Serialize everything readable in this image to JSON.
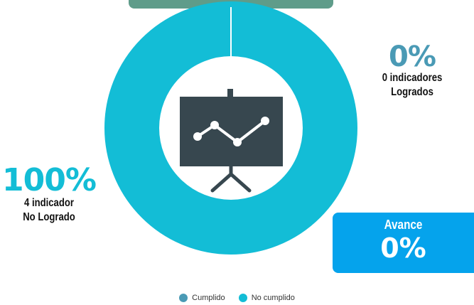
{
  "chart_data": {
    "type": "pie",
    "variant": "donut",
    "series": [
      {
        "name": "Cumplido",
        "value": 0,
        "color": "#4a9ab5"
      },
      {
        "name": "No cumplido",
        "value": 100,
        "color": "#13bdd6"
      }
    ],
    "legend_position": "bottom-center"
  },
  "stats": {
    "right": {
      "percent": "0%",
      "line1": "0 indicadores",
      "line2": "Logrados"
    },
    "left": {
      "percent": "100%",
      "line1": "4 indicador",
      "line2": "No Logrado"
    }
  },
  "avance": {
    "label": "Avance",
    "value": "0%"
  },
  "legend": {
    "items": [
      {
        "label": "Cumplido",
        "color": "#4a9ab5"
      },
      {
        "label": "No cumplido",
        "color": "#13bdd6"
      }
    ]
  },
  "center_icon": "presentation-chart-icon",
  "colors": {
    "accent_tab": "#5f9c8a",
    "icon_dark": "#37474f",
    "avance_box": "#05a3ec"
  }
}
